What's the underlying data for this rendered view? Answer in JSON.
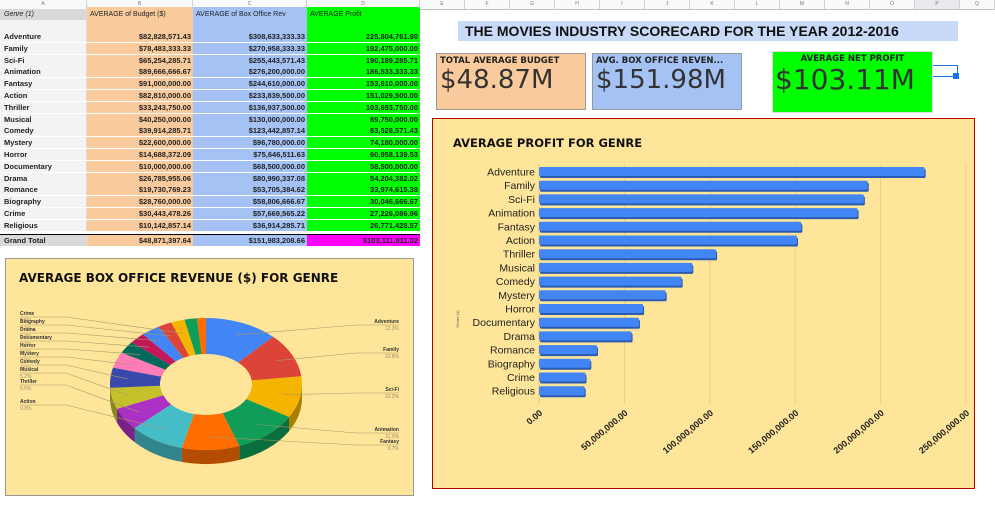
{
  "sheet": {
    "column_letters": [
      "A",
      "B",
      "C",
      "D",
      "E",
      "F",
      "G",
      "H",
      "I",
      "J",
      "K",
      "L",
      "M",
      "N",
      "O",
      "P",
      "Q"
    ],
    "selected_column": "P"
  },
  "pivot": {
    "headers": [
      "Genre (1)",
      "AVERAGE of Budget ($)",
      "AVERAGE of Box Office Rev",
      "AVERAGE Profit"
    ],
    "rows": [
      {
        "genre": "Adventure",
        "budget": "$82,828,571.43",
        "box_office": "$308,633,333.33",
        "profit": "225,804,761.90"
      },
      {
        "genre": "Family",
        "budget": "$78,483,333.33",
        "box_office": "$270,958,333.33",
        "profit": "192,475,000.00"
      },
      {
        "genre": "Sci-Fi",
        "budget": "$65,254,285.71",
        "box_office": "$255,443,571.43",
        "profit": "190,189,285.71"
      },
      {
        "genre": "Animation",
        "budget": "$89,666,666.67",
        "box_office": "$276,200,000.00",
        "profit": "186,533,333.33"
      },
      {
        "genre": "Fantasy",
        "budget": "$91,000,000.00",
        "box_office": "$244,610,000.00",
        "profit": "153,610,000.00"
      },
      {
        "genre": "Action",
        "budget": "$82,810,000.00",
        "box_office": "$233,839,500.00",
        "profit": "151,029,500.00"
      },
      {
        "genre": "Thriller",
        "budget": "$33,243,750.00",
        "box_office": "$136,937,500.00",
        "profit": "103,693,750.00"
      },
      {
        "genre": "Musical",
        "budget": "$40,250,000.00",
        "box_office": "$130,000,000.00",
        "profit": "89,750,000.00"
      },
      {
        "genre": "Comedy",
        "budget": "$39,914,285.71",
        "box_office": "$123,442,857.14",
        "profit": "83,528,571.43"
      },
      {
        "genre": "Mystery",
        "budget": "$22,600,000.00",
        "box_office": "$96,780,000.00",
        "profit": "74,180,000.00"
      },
      {
        "genre": "Horror",
        "budget": "$14,688,372.09",
        "box_office": "$75,646,511.63",
        "profit": "60,958,139.53"
      },
      {
        "genre": "Documentary",
        "budget": "$10,000,000.00",
        "box_office": "$68,500,000.00",
        "profit": "58,500,000.00"
      },
      {
        "genre": "Drama",
        "budget": "$26,785,955.06",
        "box_office": "$80,990,337.08",
        "profit": "54,204,382.02"
      },
      {
        "genre": "Romance",
        "budget": "$19,730,769.23",
        "box_office": "$53,705,384.62",
        "profit": "33,974,615.38"
      },
      {
        "genre": "Biography",
        "budget": "$28,760,000.00",
        "box_office": "$58,806,666.67",
        "profit": "30,046,666.67"
      },
      {
        "genre": "Crime",
        "budget": "$30,443,478.26",
        "box_office": "$57,669,565.22",
        "profit": "27,226,086.96"
      },
      {
        "genre": "Religious",
        "budget": "$10,142,857.14",
        "box_office": "$36,914,285.71",
        "profit": "26,771,428.57"
      }
    ],
    "grand_total": {
      "label": "Grand Total",
      "budget": "$48,871,397.64",
      "box_office": "$151,983,208.66",
      "profit": "$103,111,811.02"
    }
  },
  "scorecard": {
    "title": "THE MOVIES INDUSTRY SCORECARD FOR THE YEAR 2012-2016",
    "cards": [
      {
        "label": "TOTAL AVERAGE BUDGET",
        "value": "$48.87M",
        "color": "#f9cb9c"
      },
      {
        "label": "AVG. BOX OFFICE REVEN...",
        "value": "$151.98M",
        "color": "#a4c2f4"
      },
      {
        "label": "AVERAGE NET PROFIT",
        "value": "$103.11M",
        "color": "#00ff00"
      }
    ]
  },
  "chart_data": [
    {
      "type": "bar",
      "orientation": "horizontal",
      "title": "AVERAGE PROFIT FOR GENRE",
      "ylabel": "Genre (1)",
      "xlabel": "",
      "categories": [
        "Adventure",
        "Family",
        "Sci-Fi",
        "Animation",
        "Fantasy",
        "Action",
        "Thriller",
        "Musical",
        "Comedy",
        "Mystery",
        "Horror",
        "Documentary",
        "Drama",
        "Romance",
        "Biography",
        "Crime",
        "Religious"
      ],
      "values": [
        225804761.9,
        192475000.0,
        190189285.71,
        186533333.33,
        153610000.0,
        151029500.0,
        103693750.0,
        89750000.0,
        83528571.43,
        74180000.0,
        60958139.53,
        58500000.0,
        54204382.02,
        33974615.38,
        30046666.67,
        27226086.96,
        26771428.57
      ],
      "xlim": [
        0,
        250000000
      ],
      "xticks": [
        "0.00",
        "50,000,000.00",
        "100,000,000.00",
        "150,000,000.00",
        "200,000,000.00",
        "250,000,000.00"
      ],
      "grid": true,
      "bar_color": "#4285f4",
      "background": "#ffe599"
    },
    {
      "type": "pie",
      "style": "3d-donut",
      "title": "AVERAGE BOX OFFICE REVENUE ($) FOR GENRE",
      "slices": [
        {
          "label": "Adventure",
          "percent": "12.3%",
          "color": "#4285f4"
        },
        {
          "label": "Family",
          "percent": "10.8%",
          "color": "#db4437"
        },
        {
          "label": "Sci-Fi",
          "percent": "10.2%",
          "color": "#f4b400"
        },
        {
          "label": "Animation",
          "percent": "11.0%",
          "color": "#0f9d58"
        },
        {
          "label": "Fantasy",
          "percent": "9.7%",
          "color": "#ff6d00"
        },
        {
          "label": "Action",
          "percent": "9.3%",
          "color": "#46bdc6"
        },
        {
          "label": "Thriller",
          "percent": "5.5%",
          "color": "#ab30c4"
        },
        {
          "label": "Musical",
          "percent": "5.2%",
          "color": "#c5c12a"
        },
        {
          "label": "Comedy",
          "percent": "4.9%",
          "color": "#3949ab"
        },
        {
          "label": "Mystery",
          "percent": "3.9%",
          "color": "#ff7cb6"
        },
        {
          "label": "Horror",
          "percent": "3.0%",
          "color": "#00695c"
        },
        {
          "label": "Documentary",
          "percent": "2.7%",
          "color": "#c2185b"
        },
        {
          "label": "Drama",
          "percent": "3.2%",
          "color": "#4285f4"
        },
        {
          "label": "Biography",
          "percent": "2.3%",
          "color": "#db4437"
        },
        {
          "label": "Crime",
          "percent": "2.3%",
          "color": "#f4b400"
        },
        {
          "label": "Romance",
          "percent": "2.1%",
          "color": "#0f9d58"
        },
        {
          "label": "Religious",
          "percent": "1.5%",
          "color": "#ff6d00"
        }
      ],
      "values_pct": [
        12.3,
        10.8,
        10.2,
        11.0,
        9.7,
        9.3,
        5.5,
        5.2,
        4.9,
        3.9,
        3.0,
        2.7,
        3.2,
        2.3,
        2.3,
        2.1,
        1.5
      ],
      "labeled_slices": [
        "Adventure",
        "Family",
        "Sci-Fi",
        "Animation",
        "Fantasy",
        "Action",
        "Thriller",
        "Musical",
        "Comedy",
        "Mystery",
        "Horror",
        "Documentary",
        "Drama",
        "Biography",
        "Crime"
      ],
      "background": "#ffe599"
    }
  ]
}
